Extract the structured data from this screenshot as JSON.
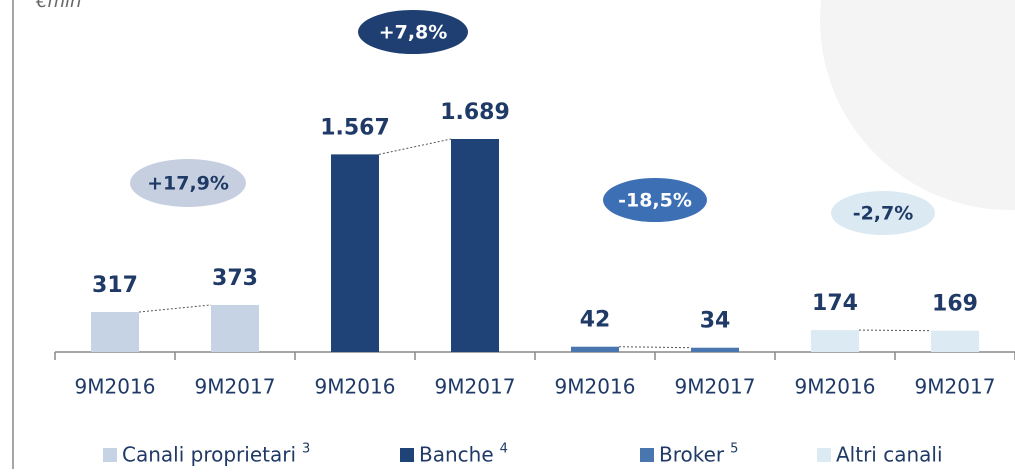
{
  "chart_data": {
    "type": "bar",
    "unit": "€mln",
    "categories": [
      "9M2016",
      "9M2017"
    ],
    "ylim": [
      0,
      1800
    ],
    "series": [
      {
        "name": "Canali proprietari",
        "footnote": "3",
        "color": "#c5d3e5",
        "badge_color": "#c5cfdf",
        "badge_text_color": "#1f3a66",
        "values": [
          317,
          373
        ],
        "value_labels": [
          "317",
          "373"
        ],
        "change_label": "+17,9%"
      },
      {
        "name": "Banche",
        "footnote": "4",
        "color": "#1f4376",
        "badge_color": "#1f3f73",
        "badge_text_color": "#ffffff",
        "values": [
          1567,
          1689
        ],
        "value_labels": [
          "1.567",
          "1.689"
        ],
        "change_label": "+7,8%"
      },
      {
        "name": "Broker",
        "footnote": "5",
        "color": "#4a76b0",
        "badge_color": "#3d6fb5",
        "badge_text_color": "#ffffff",
        "values": [
          42,
          34
        ],
        "value_labels": [
          "42",
          "34"
        ],
        "change_label": "-18,5%"
      },
      {
        "name": "Altri canali",
        "color": "#dcebf3",
        "badge_color": "#dbeaf2",
        "badge_text_color": "#1f3a66",
        "values": [
          174,
          169
        ],
        "value_labels": [
          "174",
          "169"
        ],
        "change_label": "-2,7%"
      }
    ]
  }
}
